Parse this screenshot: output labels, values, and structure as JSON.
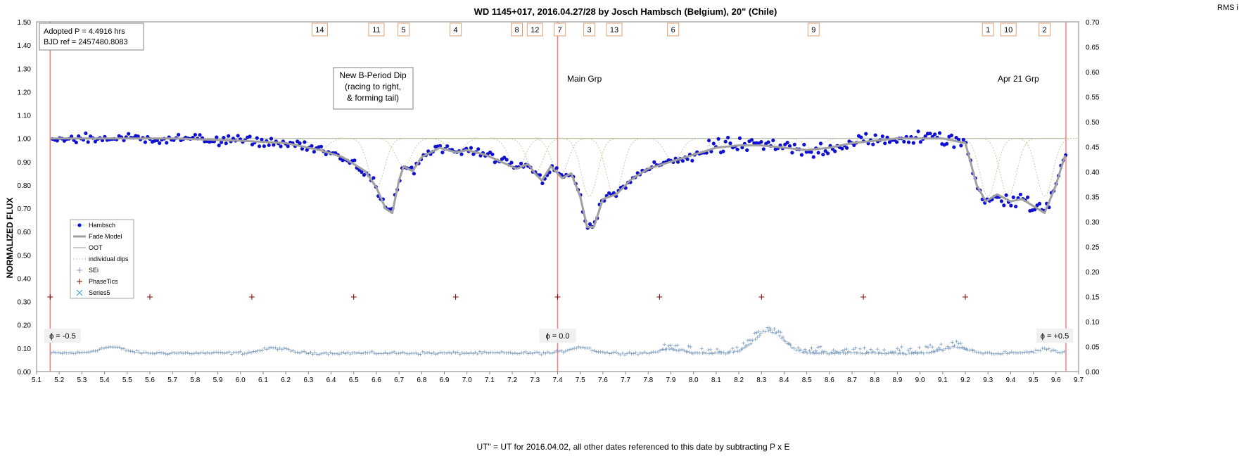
{
  "chart_data": {
    "type": "scatter",
    "title": "WD 1145+017, 2016.04.27/28  by  Josch Hambsch (Belgium), 20\" (Chile)",
    "xlabel": "UT\"  = UT for 2016.04.02, all other dates referenced to this date by subtracting  P x E",
    "ylabel": "NORMALIZED  FLUX",
    "y2label": "RMS i",
    "xlim": [
      5.1,
      9.7
    ],
    "ylim": [
      0.0,
      1.5
    ],
    "y2lim": [
      0.0,
      0.7
    ],
    "x_ticks": [
      "5.1",
      "5.2",
      "5.3",
      "5.4",
      "5.5",
      "5.6",
      "5.7",
      "5.8",
      "5.9",
      "6.0",
      "6.1",
      "6.2",
      "6.3",
      "6.4",
      "6.5",
      "6.6",
      "6.7",
      "6.8",
      "6.9",
      "7.0",
      "7.1",
      "7.2",
      "7.3",
      "7.4",
      "7.5",
      "7.6",
      "7.7",
      "7.8",
      "7.9",
      "8.0",
      "8.1",
      "8.2",
      "8.3",
      "8.4",
      "8.5",
      "8.6",
      "8.7",
      "8.8",
      "8.9",
      "9.0",
      "9.1",
      "9.2",
      "9.3",
      "9.4",
      "9.5",
      "9.6",
      "9.7"
    ],
    "y_ticks": [
      "0.00",
      "0.10",
      "0.20",
      "0.30",
      "0.40",
      "0.50",
      "0.60",
      "0.70",
      "0.80",
      "0.90",
      "1.00",
      "1.10",
      "1.20",
      "1.30",
      "1.40",
      "1.50"
    ],
    "y2_ticks": [
      "0.00",
      "0.05",
      "0.10",
      "0.15",
      "0.20",
      "0.25",
      "0.30",
      "0.35",
      "0.40",
      "0.45",
      "0.50",
      "0.55",
      "0.60",
      "0.65",
      "0.70"
    ],
    "grid": true,
    "info_box": [
      "Adopted P = 4.4916 hrs",
      "BJD ref = 2457480.8083"
    ],
    "legend": {
      "placement": "lower-left",
      "entries": [
        "Hambsch",
        "Fade Model",
        "OOT",
        "individual dips",
        "SEi",
        "PhaseTics",
        "Series5"
      ]
    },
    "annotations": {
      "new_dip": [
        "New B-Period Dip",
        "(racing to right,",
        "& forming tail)"
      ],
      "main_grp": {
        "text": "Main Grp",
        "x": 7.42,
        "y": 1.25
      },
      "apr21_grp": {
        "text": "Apr 21 Grp",
        "x": 9.3,
        "y": 1.25
      }
    },
    "phase_labels": [
      {
        "text": "ϕ = -0.5",
        "x": 5.165
      },
      {
        "text": "ϕ = 0.0",
        "x": 7.4
      },
      {
        "text": "ϕ = +0.5",
        "x": 9.644
      }
    ],
    "phase_lines": [
      5.16,
      7.4,
      9.644
    ],
    "phase_tics": {
      "y": 0.32,
      "x": [
        5.16,
        5.6,
        6.05,
        6.5,
        6.95,
        7.4,
        7.85,
        8.3,
        8.75,
        9.2
      ]
    },
    "dip_labels": [
      {
        "text": "14",
        "x": 6.35
      },
      {
        "text": "11",
        "x": 6.6
      },
      {
        "text": "5",
        "x": 6.72
      },
      {
        "text": "4",
        "x": 6.95
      },
      {
        "text": "8",
        "x": 7.22
      },
      {
        "text": "12",
        "x": 7.3
      },
      {
        "text": "7",
        "x": 7.41
      },
      {
        "text": "3",
        "x": 7.54
      },
      {
        "text": "13",
        "x": 7.65
      },
      {
        "text": "6",
        "x": 7.91
      },
      {
        "text": "9",
        "x": 8.53
      },
      {
        "text": "1",
        "x": 9.3
      },
      {
        "text": "10",
        "x": 9.39
      },
      {
        "text": "2",
        "x": 9.55
      }
    ],
    "fade_model": {
      "x": [
        5.16,
        5.4,
        5.7,
        6.0,
        6.2,
        6.35,
        6.45,
        6.55,
        6.6,
        6.64,
        6.67,
        6.7,
        6.72,
        6.76,
        6.8,
        6.88,
        6.95,
        7.0,
        7.08,
        7.15,
        7.22,
        7.27,
        7.3,
        7.33,
        7.37,
        7.42,
        7.46,
        7.5,
        7.53,
        7.56,
        7.6,
        7.66,
        7.72,
        7.8,
        7.9,
        8.0,
        8.1,
        8.2,
        8.3,
        8.4,
        8.5,
        8.6,
        8.7,
        8.8,
        8.9,
        9.0,
        9.1,
        9.2,
        9.25,
        9.29,
        9.34,
        9.4,
        9.45,
        9.5,
        9.55,
        9.6,
        9.644
      ],
      "y": [
        1.0,
        1.0,
        1.0,
        0.99,
        0.98,
        0.95,
        0.92,
        0.86,
        0.79,
        0.7,
        0.68,
        0.82,
        0.88,
        0.86,
        0.92,
        0.96,
        0.94,
        0.95,
        0.93,
        0.9,
        0.87,
        0.89,
        0.85,
        0.82,
        0.88,
        0.83,
        0.85,
        0.75,
        0.62,
        0.62,
        0.74,
        0.76,
        0.82,
        0.87,
        0.9,
        0.93,
        0.96,
        0.97,
        0.97,
        0.96,
        0.95,
        0.96,
        0.98,
        0.99,
        1.0,
        1.0,
        1.0,
        0.98,
        0.8,
        0.73,
        0.76,
        0.73,
        0.74,
        0.71,
        0.68,
        0.8,
        0.94
      ]
    },
    "individual_dip_centers": [
      6.35,
      6.6,
      6.72,
      6.95,
      7.22,
      7.3,
      7.41,
      7.54,
      7.65,
      7.91,
      8.53,
      9.3,
      9.39,
      9.55
    ],
    "series": [
      {
        "name": "Hambsch",
        "values": "~450 points, flux 0.60–1.14, following the fade model with scatter ±0.05"
      },
      {
        "name": "SEi",
        "values": "~450 points, RMS 0.025–0.11 (right axis), peak ≈0.105 near x=8.3"
      }
    ],
    "series_colors": {
      "Hambsch": "#1010d0",
      "Fade Model": "#a0a0a0",
      "OOT": "#bfbfbf",
      "individual dips": "#b9cc9a",
      "SEi": "#7f9fbf",
      "PhaseTics": "#8b0000",
      "Series5": "#3aa0d0"
    }
  }
}
